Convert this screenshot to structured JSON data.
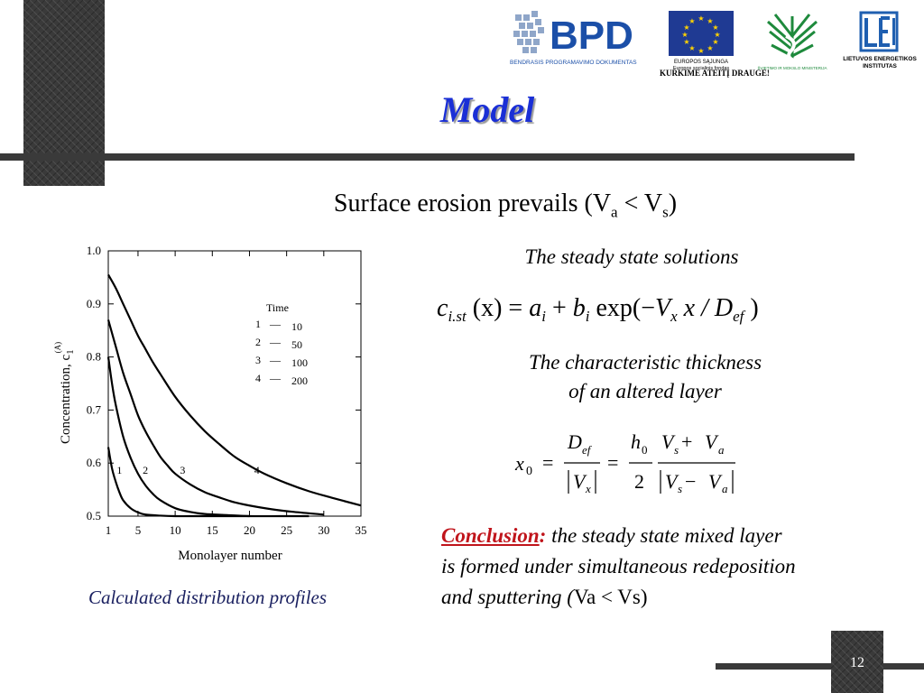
{
  "slide": {
    "title": "Model",
    "subtitle_main": "Surface erosion prevails (V",
    "subtitle_sub_a": "a",
    "subtitle_lt": " < V",
    "subtitle_sub_s": "s",
    "subtitle_close": ")",
    "page_number": "12",
    "caption": "Calculated distribution profiles"
  },
  "logos": {
    "bpd_text": "BPD",
    "bpd_caption": "BENDRASIS PROGRAMAVIMO DOKUMENTAS",
    "eu_line1": "EUROPOS SĄJUNGA",
    "eu_line2": "Europos socialinis fondas",
    "motto": "KURKIME ATEITĮ DRAUGE!",
    "ministry": "ŠVIETIMO IR MOKSLO MINISTERIJA",
    "lei_line1": "LIETUVOS ENERGETIKOS",
    "lei_line2": "INSTITUTAS",
    "colors": {
      "bpd_blue": "#1b4fa8",
      "eu_blue": "#1f3a93",
      "eu_star": "#ffd200",
      "ministry_green": "#1e8a3c"
    }
  },
  "right_text": {
    "steady_label": "The steady state solutions",
    "thickness_label_line1": "The characteristic thickness",
    "thickness_label_line2": "of an altered layer",
    "conclusion_word": "Conclusion",
    "conclusion_colon": ":",
    "conclusion_line1": " the steady state mixed layer",
    "conclusion_line2": "is formed under simultaneous redeposition",
    "conclusion_line3_start": "and sputtering (",
    "conclusion_va": "Va",
    "conclusion_lt": " < ",
    "conclusion_vs": "Vs",
    "conclusion_close": ")"
  },
  "equation1": {
    "c": "c",
    "c_sub": "i.st",
    "x_arg": " (x) = ",
    "a": "a",
    "a_sub": "i",
    "plus": " + ",
    "b": "b",
    "b_sub": "i",
    "exp": " exp(−",
    "V": "V",
    "V_sub": "x",
    "x_over": " x / ",
    "D": "D",
    "D_sub": "ef",
    "close": " )"
  },
  "equation2": {
    "x0": "x",
    "x0_sub": "0",
    "eq": "=",
    "frac1_num": "D",
    "frac1_num_sub": "ef",
    "frac1_den": "V",
    "frac1_den_sub": "x",
    "frac2_num": "h",
    "frac2_num_sub": "0",
    "frac2_den": "2",
    "frac3_num_a": "V",
    "frac3_num_a_sub": "s",
    "frac3_num_op": " + ",
    "frac3_num_b": "V",
    "frac3_num_b_sub": "a",
    "frac3_den_a": "V",
    "frac3_den_a_sub": "s",
    "frac3_den_op": " − ",
    "frac3_den_b": "V",
    "frac3_den_b_sub": "a"
  },
  "chart_data": {
    "type": "line",
    "xlabel": "Monolayer  number",
    "ylabel_text": "Concentration,  c",
    "ylabel_sub": "1",
    "ylabel_sup": "(A)",
    "xlim": [
      1,
      35
    ],
    "ylim": [
      0.5,
      1.0
    ],
    "x_ticks": [
      1,
      5,
      10,
      15,
      20,
      25,
      30,
      35
    ],
    "y_ticks": [
      0.5,
      0.6,
      0.7,
      0.8,
      0.9,
      1.0
    ],
    "y_tick_labels": [
      "0.5",
      "0.6",
      "0.7",
      "0.8",
      "0.9",
      "1.0"
    ],
    "grid": false,
    "legend": {
      "title": "Time",
      "entries": [
        {
          "num": "1",
          "dash": "—",
          "value": "10"
        },
        {
          "num": "2",
          "dash": "—",
          "value": "50"
        },
        {
          "num": "3",
          "dash": "—",
          "value": "100"
        },
        {
          "num": "4",
          "dash": "—",
          "value": "200"
        }
      ]
    },
    "series": [
      {
        "label": "1",
        "label_pos": [
          2.5,
          0.58
        ],
        "x": [
          1,
          1.5,
          2,
          2.5,
          3,
          4,
          5,
          6,
          8,
          10,
          13,
          16,
          20
        ],
        "y": [
          0.63,
          0.59,
          0.565,
          0.545,
          0.53,
          0.515,
          0.507,
          0.503,
          0.501,
          0.5,
          0.5,
          0.5,
          0.5
        ]
      },
      {
        "label": "2",
        "label_pos": [
          6,
          0.58
        ],
        "x": [
          1,
          1.5,
          2,
          3,
          4,
          5,
          6,
          7,
          8,
          10,
          12,
          14,
          17,
          20,
          24,
          28
        ],
        "y": [
          0.8,
          0.75,
          0.71,
          0.65,
          0.61,
          0.58,
          0.558,
          0.542,
          0.53,
          0.515,
          0.508,
          0.504,
          0.502,
          0.5,
          0.5,
          0.5
        ]
      },
      {
        "label": "3",
        "label_pos": [
          11,
          0.58
        ],
        "x": [
          1,
          2,
          3,
          4,
          5,
          6,
          7,
          8,
          9,
          10,
          12,
          14,
          16,
          18,
          20,
          23,
          26,
          30
        ],
        "y": [
          0.87,
          0.82,
          0.77,
          0.73,
          0.69,
          0.66,
          0.635,
          0.612,
          0.595,
          0.58,
          0.56,
          0.545,
          0.535,
          0.526,
          0.52,
          0.513,
          0.508,
          0.503
        ]
      },
      {
        "label": "4",
        "label_pos": [
          21,
          0.58
        ],
        "x": [
          1,
          2,
          3,
          4,
          5,
          6,
          7,
          8,
          10,
          12,
          14,
          16,
          18,
          20,
          22,
          25,
          28,
          31,
          35
        ],
        "y": [
          0.955,
          0.93,
          0.9,
          0.87,
          0.84,
          0.815,
          0.79,
          0.768,
          0.725,
          0.69,
          0.66,
          0.635,
          0.612,
          0.595,
          0.58,
          0.562,
          0.547,
          0.535,
          0.52
        ]
      }
    ]
  }
}
